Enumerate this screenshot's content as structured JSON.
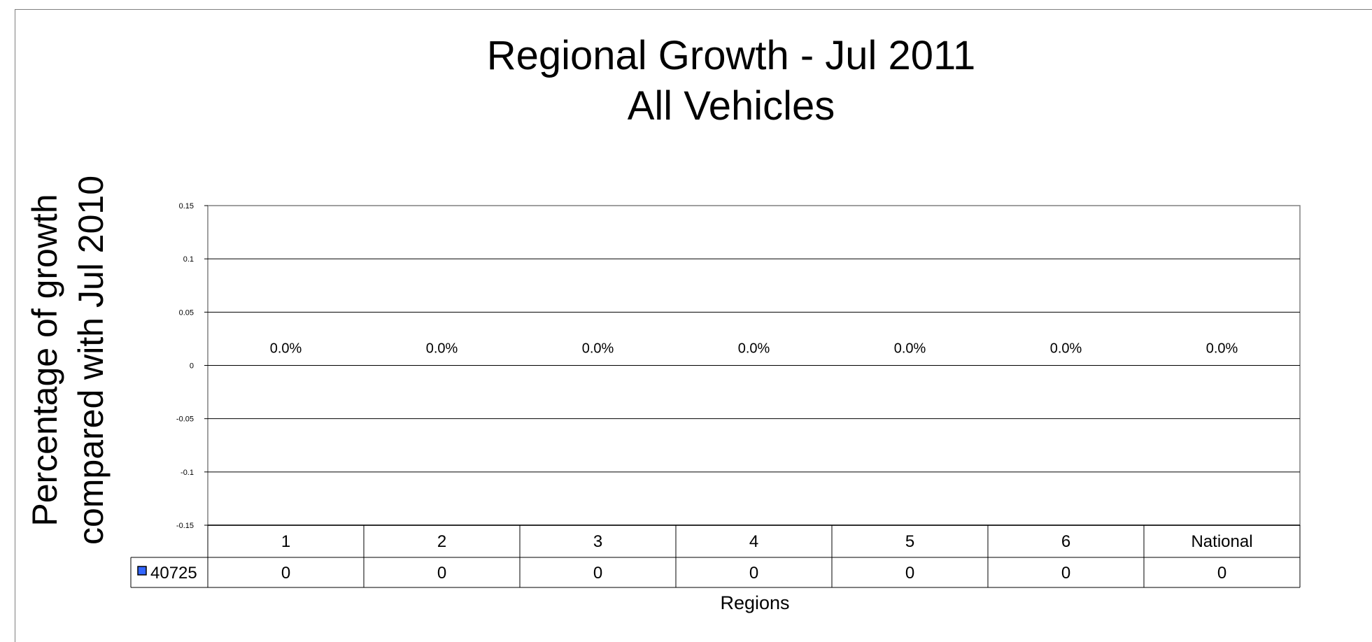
{
  "chart_data": {
    "type": "bar",
    "title": "Regional Growth - Jul 2011",
    "subtitle": "All Vehicles",
    "ylabel_line1": "Percentage of growth",
    "ylabel_line2": "compared with Jul 2010",
    "xlabel": "Regions",
    "categories": [
      "1",
      "2",
      "3",
      "4",
      "5",
      "6",
      "National"
    ],
    "series": [
      {
        "name": "40725",
        "values": [
          0,
          0,
          0,
          0,
          0,
          0,
          0
        ],
        "color": "#3366ff"
      }
    ],
    "data_labels": [
      "0.0%",
      "0.0%",
      "0.0%",
      "0.0%",
      "0.0%",
      "0.0%",
      "0.0%"
    ],
    "table_values": [
      "0",
      "0",
      "0",
      "0",
      "0",
      "0",
      "0"
    ],
    "yticks": [
      "0.15",
      "0.1",
      "0.05",
      "0",
      "-0.05",
      "-0.1",
      "-0.15"
    ],
    "ylim": [
      -0.15,
      0.15
    ],
    "grid": true,
    "legend": "data-table"
  }
}
